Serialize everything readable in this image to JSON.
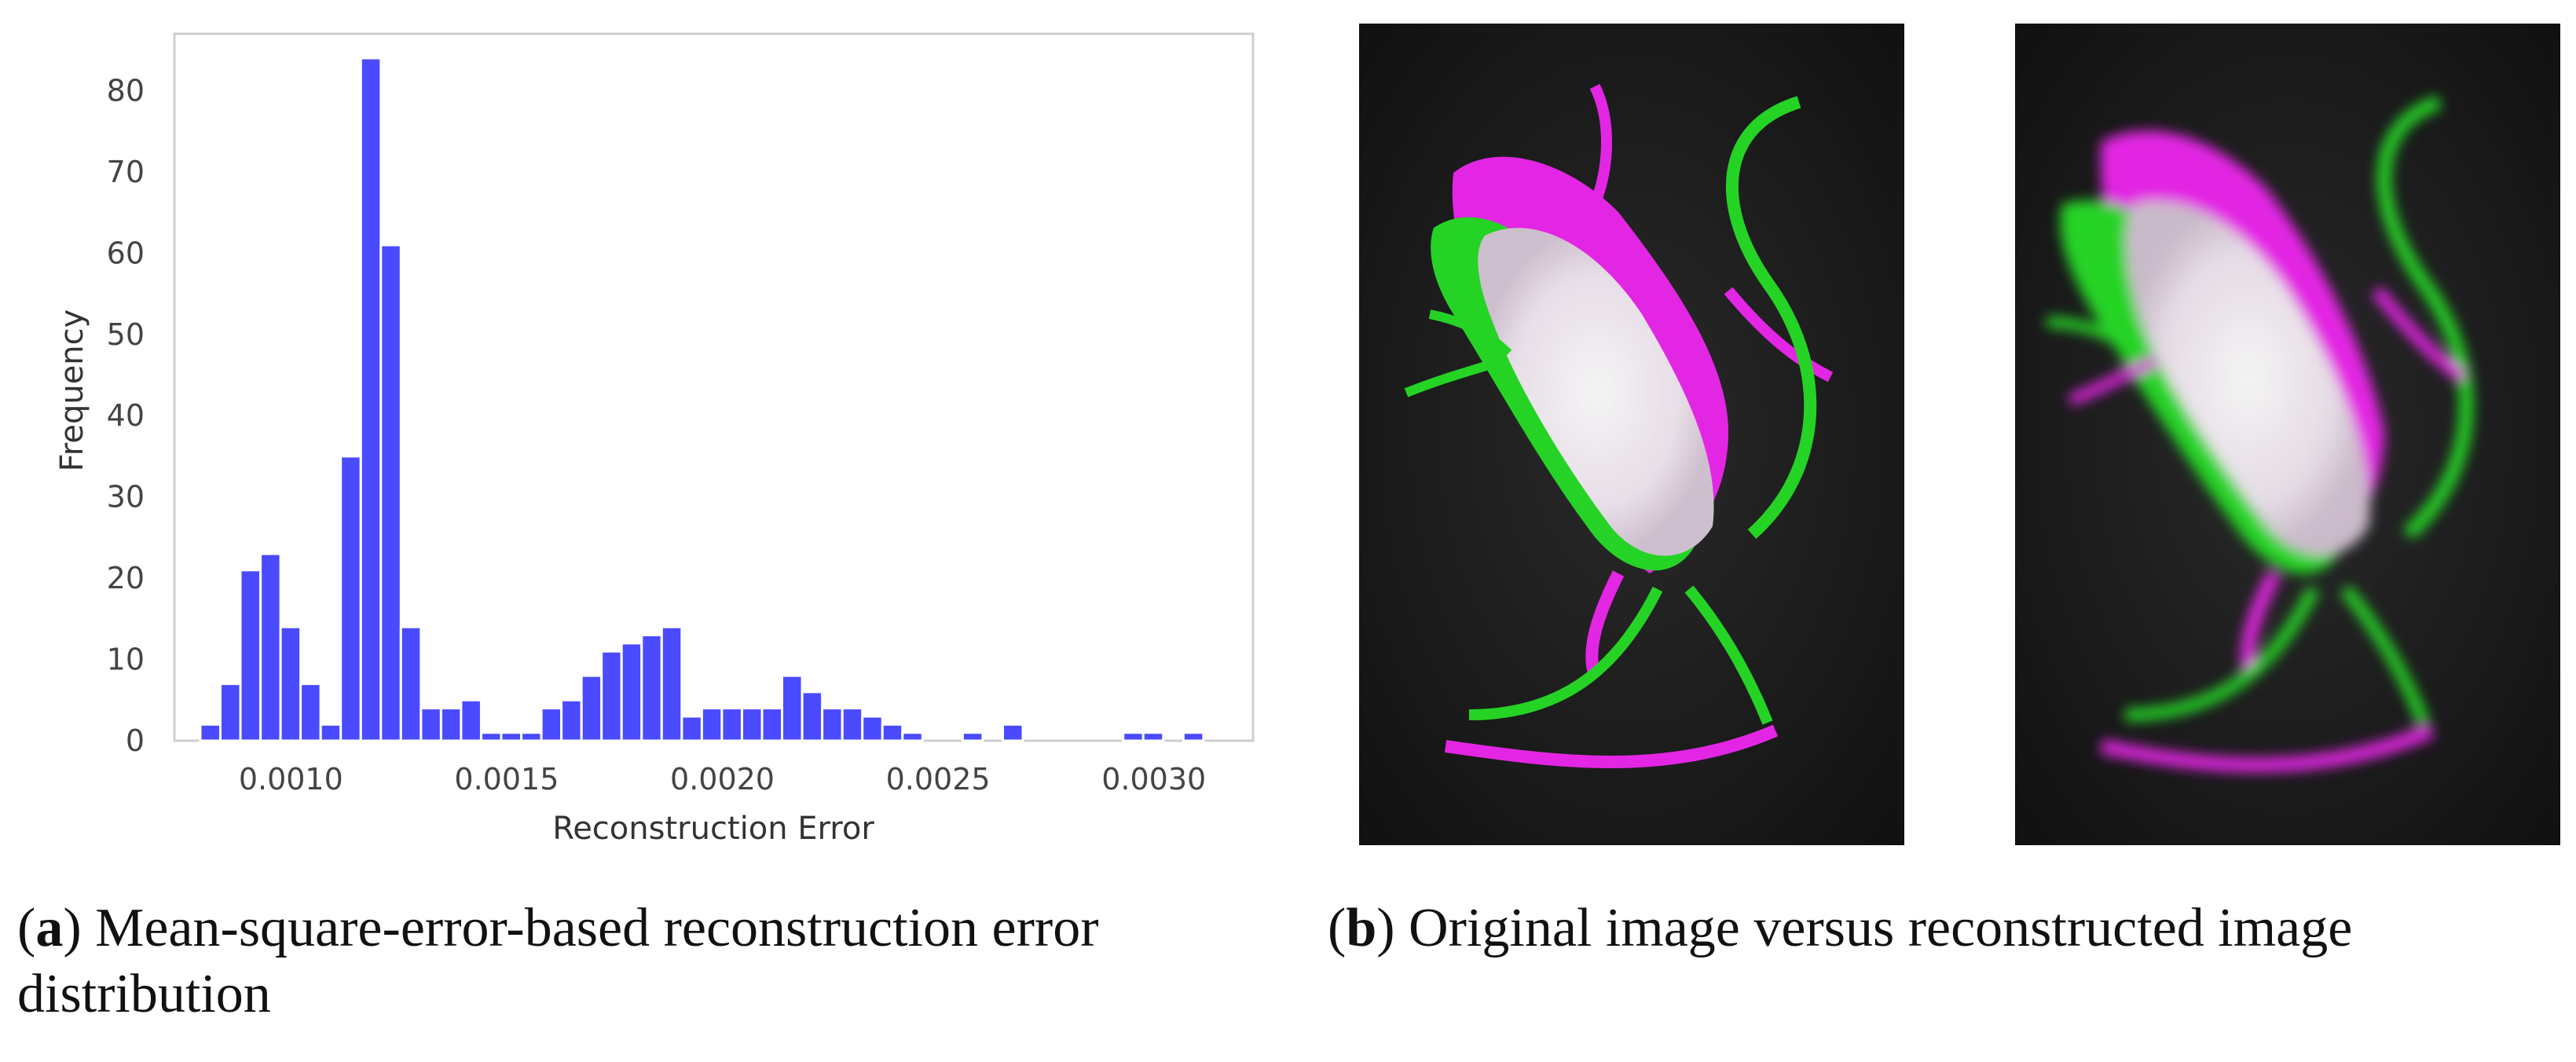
{
  "chart_data": {
    "type": "bar",
    "xlabel": "Reconstruction Error",
    "ylabel": "Frequency",
    "xlim": [
      0.00073,
      0.00323
    ],
    "ylim": [
      0,
      87
    ],
    "xticks": [
      0.001,
      0.0015,
      0.002,
      0.0025,
      0.003
    ],
    "xtick_labels": [
      "0.0010",
      "0.0015",
      "0.0020",
      "0.0025",
      "0.0030"
    ],
    "yticks": [
      0,
      10,
      20,
      30,
      40,
      50,
      60,
      70,
      80
    ],
    "ytick_labels": [
      "0",
      "10",
      "20",
      "30",
      "40",
      "50",
      "60",
      "70",
      "80"
    ],
    "grid": false,
    "bar_color": "#4a4aff",
    "bin_start": 0.00079,
    "bin_width": 4.65e-05,
    "values": [
      2,
      7,
      21,
      23,
      14,
      7,
      2,
      35,
      84,
      61,
      14,
      4,
      4,
      5,
      1,
      1,
      1,
      4,
      5,
      8,
      11,
      12,
      13,
      14,
      3,
      4,
      4,
      4,
      4,
      8,
      6,
      4,
      4,
      3,
      2,
      1,
      0,
      0,
      1,
      0,
      2,
      0,
      0,
      0,
      0,
      0,
      1,
      1,
      0,
      1
    ]
  },
  "images": {
    "original": {
      "label": "original-mouse-image"
    },
    "reconstructed": {
      "label": "reconstructed-mouse-image"
    }
  },
  "captions": {
    "a": {
      "tag": "a",
      "text": ") Mean-square-error-based reconstruction error distribution"
    },
    "b": {
      "tag": "b",
      "text": ") Original image versus reconstructed image"
    }
  }
}
